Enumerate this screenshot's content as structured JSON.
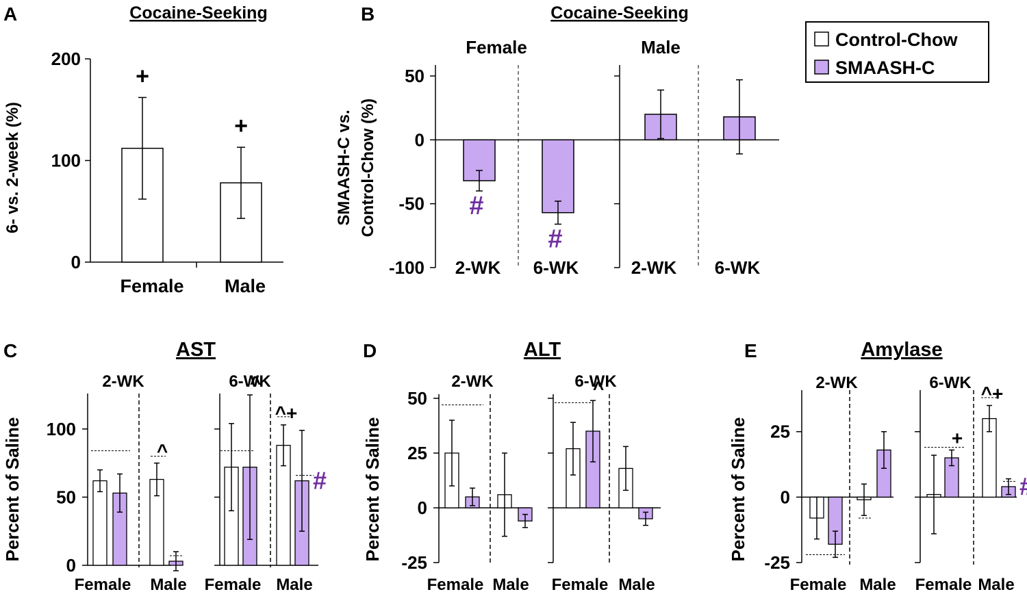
{
  "figure": {
    "legend": {
      "items": [
        {
          "label": "Control-Chow",
          "color": "#ffffff"
        },
        {
          "label": "SMAASH-C",
          "color": "#c8a8f0"
        }
      ]
    },
    "colors": {
      "control": "#ffffff",
      "smaash": "#c8a8f0",
      "sig_hash": "#7030a0",
      "ink": "#000000"
    }
  },
  "chart_data": [
    {
      "panel": "A",
      "type": "bar",
      "title": "Cocaine-Seeking",
      "ylabel": "6- vs. 2-week (%)",
      "ylim": [
        0,
        200
      ],
      "yticks": [
        0,
        100,
        200
      ],
      "categories": [
        "Female",
        "Male"
      ],
      "values": [
        112,
        78
      ],
      "errors": [
        50,
        35
      ],
      "marks": [
        "+",
        "+"
      ]
    },
    {
      "panel": "B",
      "type": "bar",
      "title": "Cocaine-Seeking",
      "ylabel_line1": "SMAASH-C vs.",
      "ylabel_line2": "Control-Chow (%)",
      "ylim": [
        -100,
        50
      ],
      "yticks": [
        50,
        0,
        -50,
        -100
      ],
      "subpanels": [
        {
          "label": "Female",
          "categories": [
            "2-WK",
            "6-WK"
          ],
          "values": [
            -32,
            -57
          ],
          "errors": [
            8,
            9
          ],
          "marks": [
            "#",
            "#"
          ]
        },
        {
          "label": "Male",
          "categories": [
            "2-WK",
            "6-WK"
          ],
          "values": [
            20,
            18
          ],
          "errors": [
            19,
            29
          ],
          "marks": [
            "",
            ""
          ]
        }
      ]
    },
    {
      "panel": "C",
      "type": "bar",
      "title": "AST",
      "ylabel": "Percent of Saline",
      "ylim": [
        0,
        125
      ],
      "yticks": [
        0,
        50,
        100
      ],
      "series": [
        "Control-Chow",
        "SMAASH-C"
      ],
      "groups": [
        {
          "label": "2-WK",
          "sexes": [
            {
              "label": "Female",
              "values": [
                62,
                53
              ],
              "errors": [
                8,
                14
              ],
              "marks": [
                "",
                ""
              ]
            },
            {
              "label": "Male",
              "values": [
                63,
                3
              ],
              "errors": [
                12,
                7
              ],
              "marks": [
                "^",
                ""
              ]
            }
          ]
        },
        {
          "label": "6-WK",
          "sexes": [
            {
              "label": "Female",
              "values": [
                72,
                72
              ],
              "errors": [
                32,
                53
              ],
              "marks": [
                "",
                "^"
              ]
            },
            {
              "label": "Male",
              "values": [
                88,
                62
              ],
              "errors": [
                15,
                37
              ],
              "marks": [
                "^+",
                "#"
              ]
            }
          ]
        }
      ]
    },
    {
      "panel": "D",
      "type": "bar",
      "title": "ALT",
      "ylabel": "Percent of Saline",
      "ylim": [
        -25,
        55
      ],
      "yticks": [
        -25,
        0,
        25,
        50
      ],
      "series": [
        "Control-Chow",
        "SMAASH-C"
      ],
      "groups": [
        {
          "label": "2-WK",
          "sexes": [
            {
              "label": "Female",
              "values": [
                25,
                5
              ],
              "errors": [
                15,
                4
              ],
              "marks": [
                "",
                ""
              ]
            },
            {
              "label": "Male",
              "values": [
                6,
                -6
              ],
              "errors": [
                19,
                3
              ],
              "marks": [
                "",
                ""
              ]
            }
          ]
        },
        {
          "label": "6-WK",
          "sexes": [
            {
              "label": "Female",
              "values": [
                27,
                35
              ],
              "errors": [
                12,
                14
              ],
              "marks": [
                "",
                "^"
              ]
            },
            {
              "label": "Male",
              "values": [
                18,
                -5
              ],
              "errors": [
                10,
                3
              ],
              "marks": [
                "",
                ""
              ]
            }
          ]
        }
      ]
    },
    {
      "panel": "E",
      "type": "bar",
      "title": "Amylase",
      "ylabel": "Percent of Saline",
      "ylim": [
        -25,
        38
      ],
      "yticks": [
        -25,
        0,
        25
      ],
      "series": [
        "Control-Chow",
        "SMAASH-C"
      ],
      "groups": [
        {
          "label": "2-WK",
          "sexes": [
            {
              "label": "Female",
              "values": [
                -8,
                -18
              ],
              "errors": [
                8,
                5
              ],
              "marks": [
                "",
                ""
              ]
            },
            {
              "label": "Male",
              "values": [
                -1,
                18
              ],
              "errors": [
                6,
                7
              ],
              "marks": [
                "",
                ""
              ]
            }
          ]
        },
        {
          "label": "6-WK",
          "sexes": [
            {
              "label": "Female",
              "values": [
                1,
                15
              ],
              "errors": [
                15,
                3
              ],
              "marks": [
                "",
                "+"
              ]
            },
            {
              "label": "Male",
              "values": [
                30,
                4
              ],
              "errors": [
                5,
                3
              ],
              "marks": [
                "^+",
                "#"
              ]
            }
          ]
        }
      ]
    }
  ]
}
